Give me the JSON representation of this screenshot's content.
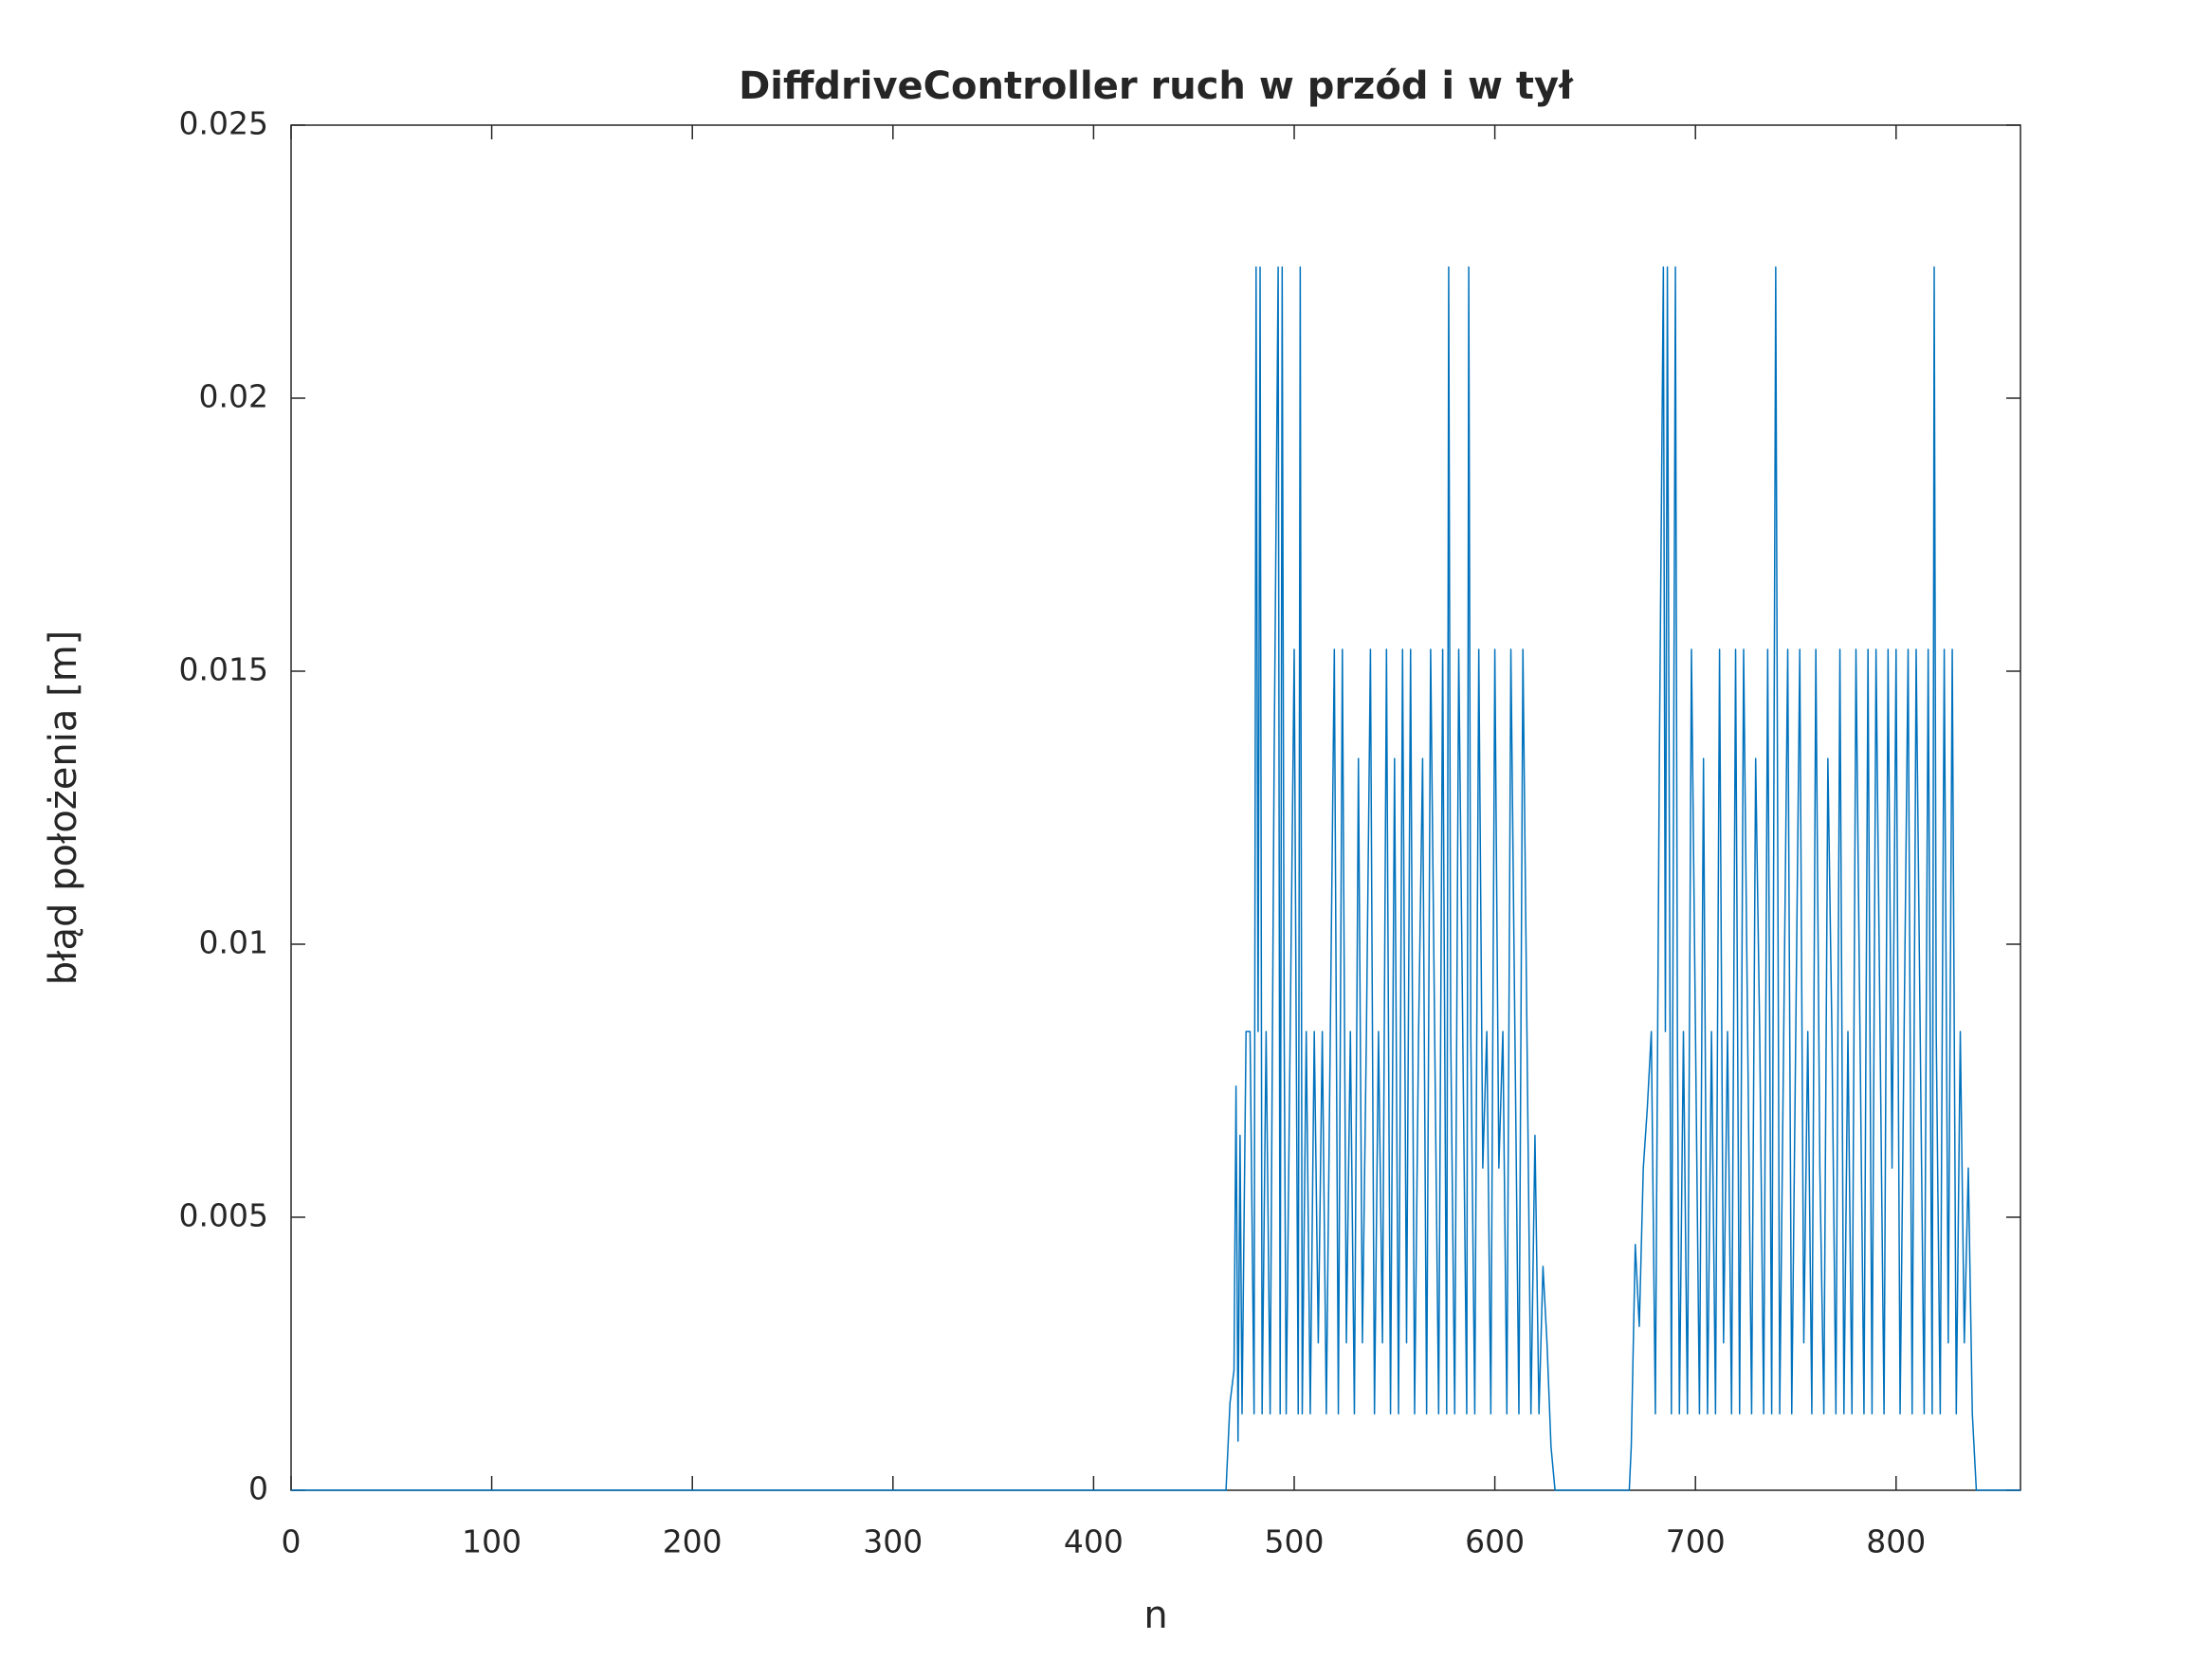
{
  "chart_data": {
    "type": "line",
    "title": "DiffdriveController ruch w przód i w tył",
    "xlabel": "n",
    "ylabel": "błąd położenia [m]",
    "xlim": [
      0,
      862
    ],
    "ylim": [
      0,
      0.025
    ],
    "xticks": [
      0,
      100,
      200,
      300,
      400,
      500,
      600,
      700,
      800
    ],
    "yticks": [
      0,
      0.005,
      0.01,
      0.015,
      0.02,
      0.025
    ],
    "grid": false,
    "color": "#0072bd",
    "x": [
      0,
      466,
      468,
      470,
      471,
      472,
      473,
      474,
      476,
      478,
      480,
      481,
      482,
      483,
      484,
      486,
      488,
      490,
      492,
      493,
      494,
      495,
      496,
      498,
      500,
      502,
      503,
      504,
      506,
      508,
      510,
      512,
      514,
      516,
      518,
      520,
      522,
      524,
      526,
      528,
      530,
      532,
      534,
      536,
      538,
      540,
      542,
      544,
      546,
      548,
      550,
      552,
      554,
      556,
      558,
      560,
      562,
      564,
      566,
      568,
      570,
      572,
      574,
      576,
      577,
      578,
      580,
      582,
      584,
      586,
      587,
      588,
      590,
      592,
      594,
      596,
      598,
      600,
      602,
      604,
      606,
      608,
      610,
      612,
      614,
      616,
      618,
      620,
      622,
      624,
      626,
      628,
      630,
      667,
      668,
      670,
      672,
      674,
      676,
      678,
      680,
      682,
      684,
      685,
      686,
      688,
      690,
      691,
      692,
      694,
      696,
      698,
      700,
      702,
      704,
      706,
      708,
      710,
      712,
      714,
      716,
      718,
      720,
      722,
      724,
      726,
      728,
      730,
      732,
      734,
      736,
      738,
      740,
      742,
      744,
      746,
      748,
      750,
      752,
      754,
      756,
      758,
      760,
      762,
      764,
      766,
      768,
      770,
      772,
      774,
      776,
      778,
      780,
      782,
      784,
      786,
      788,
      790,
      792,
      794,
      796,
      798,
      800,
      802,
      804,
      806,
      808,
      810,
      812,
      814,
      816,
      818,
      819,
      820,
      822,
      824,
      826,
      828,
      830,
      832,
      834,
      836,
      838,
      840,
      862
    ],
    "values": [
      0,
      0,
      0.0016,
      0.0022,
      0.0074,
      0.0009,
      0.0065,
      0.0014,
      0.0084,
      0.0084,
      0.0014,
      0.0224,
      0.0084,
      0.0224,
      0.0014,
      0.0084,
      0.0014,
      0.0134,
      0.0224,
      0.0014,
      0.0224,
      0.0084,
      0.0014,
      0.0084,
      0.0154,
      0.0014,
      0.0224,
      0.0014,
      0.0084,
      0.0014,
      0.0084,
      0.0027,
      0.0084,
      0.0014,
      0.0084,
      0.0154,
      0.0014,
      0.0154,
      0.0027,
      0.0084,
      0.0014,
      0.0134,
      0.0027,
      0.0084,
      0.0154,
      0.0014,
      0.0084,
      0.0027,
      0.0154,
      0.0014,
      0.0134,
      0.0014,
      0.0154,
      0.0027,
      0.0154,
      0.0014,
      0.0084,
      0.0134,
      0.0014,
      0.0154,
      0.0084,
      0.0014,
      0.0154,
      0.0014,
      0.0224,
      0.0084,
      0.0014,
      0.0154,
      0.0084,
      0.0014,
      0.0224,
      0.0084,
      0.0014,
      0.0154,
      0.0059,
      0.0084,
      0.0014,
      0.0154,
      0.0059,
      0.0084,
      0.0014,
      0.0154,
      0.0084,
      0.0014,
      0.0154,
      0.0084,
      0.0014,
      0.0065,
      0.0014,
      0.0041,
      0.0027,
      0.0008,
      0,
      0,
      0.0008,
      0.0045,
      0.003,
      0.0059,
      0.007,
      0.0084,
      0.0014,
      0.0134,
      0.0224,
      0.0084,
      0.0224,
      0.0014,
      0.0224,
      0.0084,
      0.0014,
      0.0084,
      0.0014,
      0.0154,
      0.0084,
      0.0014,
      0.0134,
      0.0014,
      0.0084,
      0.0014,
      0.0154,
      0.0027,
      0.0084,
      0.0014,
      0.0154,
      0.0014,
      0.0154,
      0.0084,
      0.0014,
      0.0134,
      0.0084,
      0.0014,
      0.0154,
      0.0014,
      0.0224,
      0.0014,
      0.0084,
      0.0154,
      0.0014,
      0.0084,
      0.0154,
      0.0027,
      0.0084,
      0.0014,
      0.0154,
      0.0059,
      0.0014,
      0.0134,
      0.0084,
      0.0014,
      0.0154,
      0.0014,
      0.0084,
      0.0014,
      0.0154,
      0.0084,
      0.0014,
      0.0154,
      0.0014,
      0.0154,
      0.0084,
      0.0014,
      0.0154,
      0.0059,
      0.0154,
      0.0014,
      0.0084,
      0.0154,
      0.0014,
      0.0154,
      0.0084,
      0.0014,
      0.0154,
      0.0014,
      0.0224,
      0.0084,
      0.0014,
      0.0154,
      0.0027,
      0.0154,
      0.0014,
      0.0084,
      0.0027,
      0.0059,
      0.0014,
      0,
      0
    ]
  }
}
